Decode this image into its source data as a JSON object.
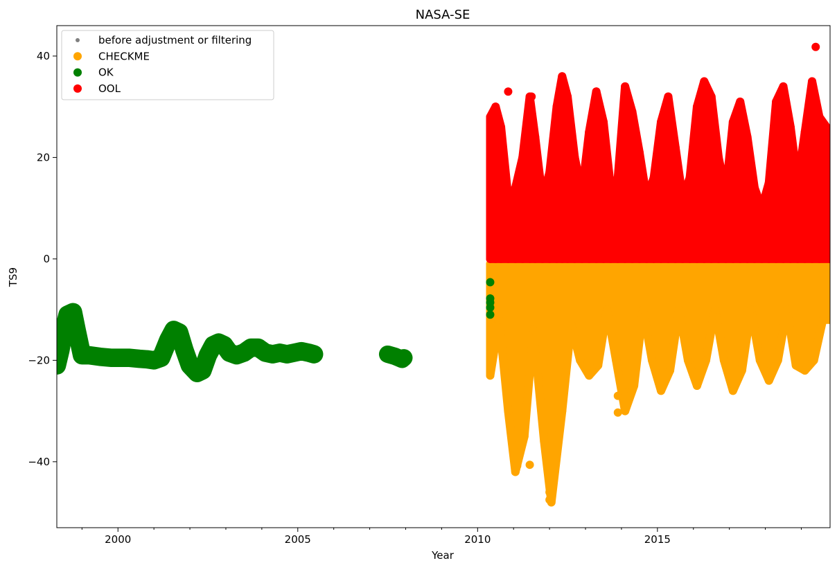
{
  "chart_data": {
    "type": "scatter",
    "title": "NASA-SE",
    "xlabel": "Year",
    "ylabel": "TS9",
    "xlim": [
      1998.3,
      2019.8
    ],
    "ylim": [
      -53,
      46
    ],
    "xticks": [
      2000,
      2005,
      2010,
      2015
    ],
    "xtick_labels": [
      "2000",
      "2005",
      "2010",
      "2015"
    ],
    "yticks": [
      -40,
      -20,
      0,
      20,
      40
    ],
    "ytick_labels": [
      "−40",
      "−20",
      "0",
      "20",
      "40"
    ],
    "grid": false,
    "legend_position": "top-left",
    "series": [
      {
        "name": "before adjustment or filtering",
        "color": "#808080",
        "marker": "small-dot",
        "x": [],
        "y": []
      },
      {
        "name": "CHECKME",
        "color": "#ffa500",
        "marker": "dot",
        "envelope": {
          "x": [
            2010.35,
            2010.6,
            2010.85,
            2011.05,
            2011.3,
            2011.55,
            2011.85,
            2012.05,
            2012.35,
            2012.6,
            2012.85,
            2013.1,
            2013.35,
            2013.6,
            2013.85,
            2014.1,
            2014.35,
            2014.6,
            2014.85,
            2015.1,
            2015.35,
            2015.6,
            2015.85,
            2016.1,
            2016.35,
            2016.6,
            2016.85,
            2017.1,
            2017.35,
            2017.6,
            2017.85,
            2018.1,
            2018.35,
            2018.6,
            2018.85,
            2019.1,
            2019.35,
            2019.6,
            2019.8
          ],
          "ymin": [
            -23,
            -12,
            -30,
            -42,
            -35,
            -14,
            -36,
            -48,
            -30,
            -13,
            -20,
            -23,
            -21,
            -10,
            -20,
            -30,
            -25,
            -10,
            -20,
            -26,
            -22,
            -10,
            -20,
            -25,
            -20,
            -10,
            -20,
            -26,
            -22,
            -10,
            -20,
            -24,
            -20,
            -10,
            -21,
            -22,
            -20,
            -12,
            -12
          ],
          "ymax": [
            -1,
            -1,
            -1,
            -1,
            -1,
            -1,
            -1,
            -1,
            -1,
            -1,
            -1,
            -1,
            -1,
            -1,
            -1,
            -1,
            -1,
            -1,
            -1,
            -1,
            -1,
            -1,
            -1,
            -1,
            -1,
            -1,
            -1,
            -1,
            -1,
            -1,
            -1,
            -1,
            -1,
            -1,
            -1,
            -1,
            -1,
            -1,
            -1
          ]
        },
        "outliers": [
          [
            2012.0,
            -46
          ],
          [
            2012.0,
            -47.5
          ],
          [
            2013.9,
            -30.3
          ],
          [
            2013.9,
            -27
          ],
          [
            2011.1,
            -40.8
          ],
          [
            2011.45,
            -40.6
          ]
        ]
      },
      {
        "name": "OK",
        "color": "#008000",
        "marker": "dot",
        "trace": {
          "x": [
            1998.3,
            1998.4,
            1998.5,
            1998.6,
            1998.75,
            1998.85,
            1999.0,
            1999.2,
            1999.5,
            1999.8,
            2000.0,
            2000.3,
            2000.6,
            2000.8,
            2001.0,
            2001.2,
            2001.4,
            2001.55,
            2001.7,
            2001.85,
            2002.0,
            2002.2,
            2002.35,
            2002.5,
            2002.65,
            2002.8,
            2002.95,
            2003.1,
            2003.3,
            2003.5,
            2003.7,
            2003.9,
            2004.1,
            2004.3,
            2004.5,
            2004.7,
            2004.9,
            2005.1,
            2005.3,
            2005.45
          ],
          "y": [
            -21,
            -18,
            -14,
            -11,
            -10.5,
            -14,
            -19,
            -19,
            -19.3,
            -19.5,
            -19.5,
            -19.5,
            -19.7,
            -19.8,
            -20,
            -19.5,
            -16,
            -14,
            -14.5,
            -18,
            -21,
            -22.5,
            -22,
            -19,
            -17,
            -16.5,
            -17,
            -18.5,
            -19,
            -18.5,
            -17.5,
            -17.5,
            -18.5,
            -18.8,
            -18.5,
            -18.8,
            -18.5,
            -18.2,
            -18.5,
            -18.8
          ],
          "thickness": 2.0
        },
        "trace2": {
          "x": [
            2007.5,
            2007.6,
            2007.7,
            2007.8,
            2007.9,
            2007.95
          ],
          "y": [
            -18.8,
            -19.0,
            -19.2,
            -19.5,
            -19.8,
            -19.5
          ],
          "thickness": 1.8
        },
        "points": [
          [
            2010.35,
            -4.6
          ],
          [
            2010.35,
            -7.8
          ],
          [
            2010.35,
            -8.6
          ],
          [
            2010.35,
            -9.6
          ],
          [
            2010.35,
            -11
          ]
        ]
      },
      {
        "name": "OOL",
        "color": "#ff0000",
        "marker": "dot",
        "envelope": {
          "x": [
            2010.35,
            2010.5,
            2010.65,
            2010.85,
            2011.05,
            2011.25,
            2011.45,
            2011.6,
            2011.8,
            2012.0,
            2012.2,
            2012.35,
            2012.5,
            2012.7,
            2012.9,
            2013.1,
            2013.3,
            2013.5,
            2013.7,
            2013.9,
            2014.1,
            2014.3,
            2014.5,
            2014.7,
            2014.9,
            2015.1,
            2015.3,
            2015.5,
            2015.7,
            2015.9,
            2016.1,
            2016.3,
            2016.5,
            2016.7,
            2016.9,
            2017.1,
            2017.3,
            2017.5,
            2017.7,
            2017.9,
            2018.1,
            2018.3,
            2018.5,
            2018.7,
            2018.9,
            2019.1,
            2019.3,
            2019.5,
            2019.8
          ],
          "ymin": [
            0,
            0,
            0,
            0,
            0,
            0,
            0,
            0,
            0,
            0,
            0,
            0,
            0,
            0,
            0,
            0,
            0,
            0,
            0,
            0,
            0,
            0,
            0,
            0,
            0,
            0,
            0,
            0,
            0,
            0,
            0,
            0,
            0,
            0,
            0,
            0,
            0,
            0,
            0,
            0,
            0,
            0,
            0,
            0,
            0,
            0,
            0,
            0,
            0
          ],
          "ymax": [
            28,
            30,
            26,
            12,
            14,
            20,
            32,
            24,
            12,
            17,
            30,
            36,
            32,
            20,
            13,
            25,
            33,
            27,
            14,
            16,
            34,
            29,
            21,
            12,
            16,
            27,
            32,
            22,
            12,
            16,
            30,
            35,
            32,
            20,
            13,
            27,
            31,
            24,
            14,
            10,
            15,
            31,
            34,
            26,
            15,
            25,
            35,
            28,
            25
          ]
        },
        "outliers": [
          [
            2019.4,
            41.8
          ],
          [
            2010.85,
            33
          ],
          [
            2011.5,
            32
          ]
        ]
      }
    ]
  }
}
